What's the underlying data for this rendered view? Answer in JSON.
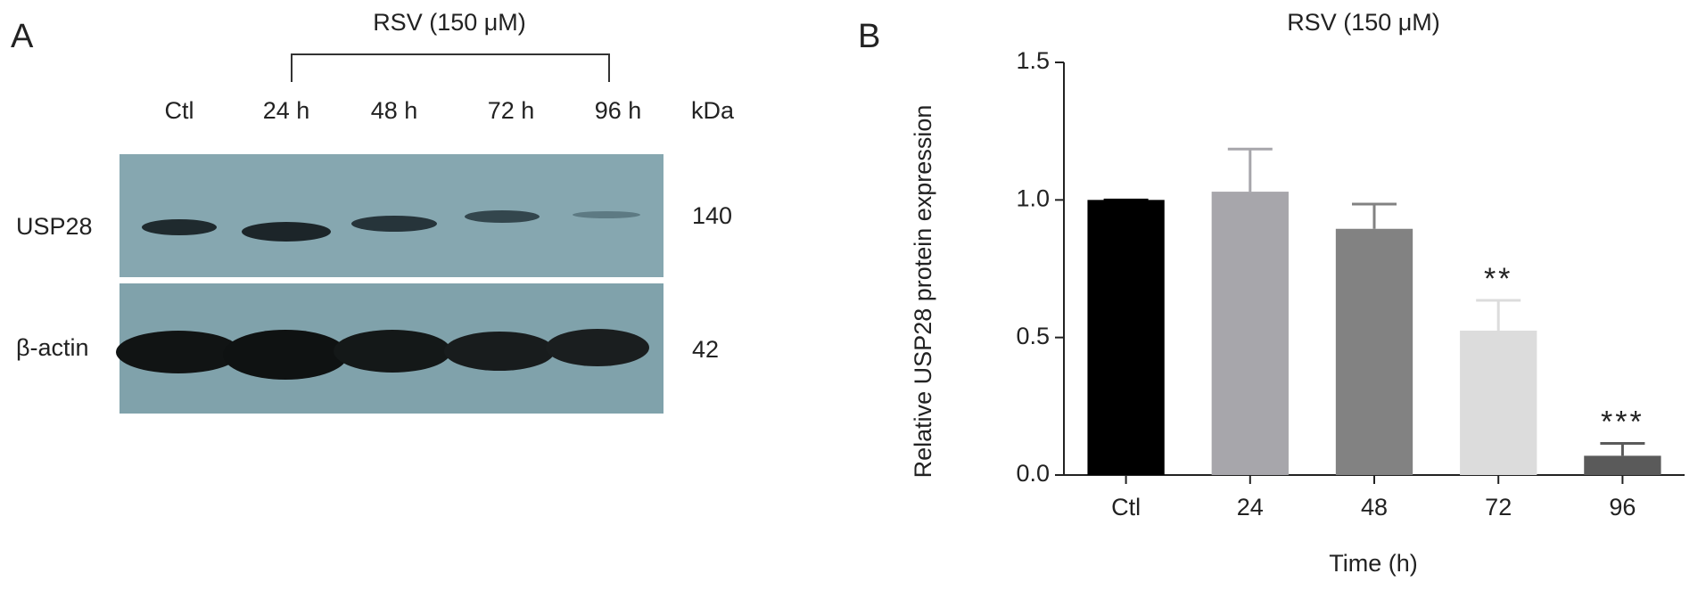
{
  "panel_a": {
    "label": "A",
    "treatment": "RSV (150 μM)",
    "lanes": [
      "Ctl",
      "24 h",
      "48 h",
      "72 h",
      "96 h"
    ],
    "mw_unit": "kDa",
    "rows": [
      {
        "protein": "USP28",
        "mw": 140
      },
      {
        "protein": "β-actin",
        "mw": 42
      }
    ]
  },
  "chart_data": {
    "type": "bar",
    "panel_label": "B",
    "title": "RSV (150 μM)",
    "xlabel": "Time (h)",
    "ylabel": "Relative USP28 protein expression",
    "categories": [
      "Ctl",
      "24",
      "48",
      "72",
      "96"
    ],
    "values": [
      1.0,
      1.03,
      0.895,
      0.525,
      0.07
    ],
    "errors": [
      0,
      0.155,
      0.09,
      0.11,
      0.045
    ],
    "colors": [
      "#000000",
      "#a7a6ab",
      "#828282",
      "#dcdcdc",
      "#5a5a5a"
    ],
    "annotations": [
      null,
      null,
      null,
      "**",
      "***"
    ],
    "ylim": [
      0,
      1.5
    ],
    "yticks": [
      {
        "value": 0,
        "label": "0.0"
      },
      {
        "value": 0.5,
        "label": "0.5"
      },
      {
        "value": 1,
        "label": "1.0"
      },
      {
        "value": 1.5,
        "label": "1.5"
      }
    ]
  }
}
